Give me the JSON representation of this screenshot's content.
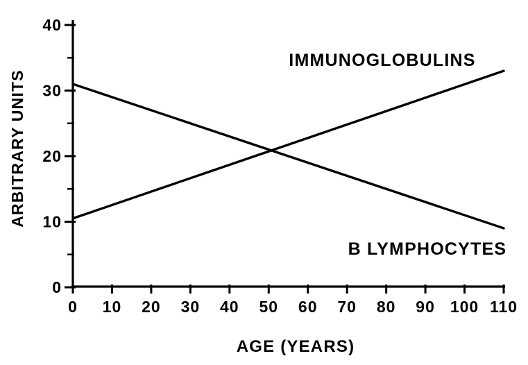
{
  "page": {
    "background": "#ffffff",
    "ink": "#000000"
  },
  "chart_data": {
    "type": "line",
    "title": "",
    "xlabel": "AGE (YEARS)",
    "ylabel": "ARBITRARY UNITS",
    "xlim": [
      0,
      110
    ],
    "ylim": [
      0,
      40
    ],
    "x_ticks": [
      0,
      10,
      20,
      30,
      40,
      50,
      60,
      70,
      80,
      90,
      100,
      110
    ],
    "y_ticks": [
      0,
      10,
      20,
      30,
      40
    ],
    "y_minor_ticks": [
      5,
      15,
      25,
      35
    ],
    "grid": false,
    "legend_position": "inline-annotations",
    "intersection": {
      "x": 51,
      "y": 20.9
    },
    "series": [
      {
        "name": "IMMUNOGLOBULINS",
        "x": [
          0,
          110
        ],
        "values": [
          10.5,
          33
        ],
        "trend": "increasing",
        "label": {
          "text": "IMMUNOGLOBULINS",
          "x": 79,
          "y": 34.7
        }
      },
      {
        "name": "B LYMPHOCYTES",
        "x": [
          0,
          110
        ],
        "values": [
          31,
          9
        ],
        "trend": "decreasing",
        "label": {
          "text": "B LYMPHOCYTES",
          "x": 90.5,
          "y": 5.9
        }
      }
    ]
  }
}
